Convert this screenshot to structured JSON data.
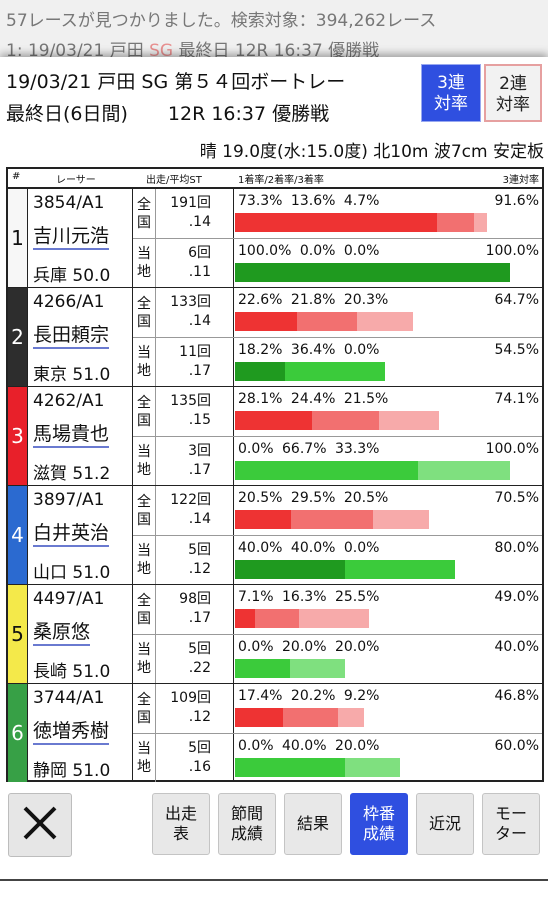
{
  "background": {
    "line1": "57レースが見つかりました。検索対象：394,262レース",
    "line2_prefix": "1: 19/03/21 戸田",
    "line2_sg": "SG",
    "line2_suffix": "最終日 12R 16:37 優勝戦"
  },
  "header": {
    "line1": "19/03/21 戸田 SG 第５４回ボートレー",
    "days": "最終日(6日間)",
    "race": "12R 16:37 優勝戦",
    "weather": "晴 19.0度(水:15.0度) 北10m 波7cm 安定板",
    "toggle_3": "3連\n対率",
    "toggle_2": "2連\n対率"
  },
  "table_header": {
    "num": "#",
    "racer": "レーサー",
    "runs": "出走/平均ST",
    "rates": "1着率/2着率/3着率",
    "total": "3連対率"
  },
  "rows_labels": {
    "national": [
      "全",
      "国"
    ],
    "local": [
      "当",
      "地"
    ]
  },
  "colors": {
    "waku": [
      "#f7f7f7",
      "#2d2d2d",
      "#e8202a",
      "#2b6ad0",
      "#f4e94a",
      "#37a046"
    ],
    "waku_text": [
      "#111111",
      "#ffffff",
      "#ffffff",
      "#ffffff",
      "#111111",
      "#ffffff"
    ],
    "national_bar": [
      "#ee3333",
      "#f27070",
      "#f7aaaa"
    ],
    "local_bar": [
      "#1f9a1f",
      "#3bcb3b",
      "#7fe07f"
    ]
  },
  "racers": [
    {
      "waku": "1",
      "reg": "3854/A1",
      "name": "吉川元浩",
      "branch": "兵庫 50.0",
      "national": {
        "runs": "191回",
        "st": ".14",
        "r1": 73.3,
        "r2": 13.6,
        "r3": 4.7,
        "p1": "73.3%",
        "p2": "13.6%",
        "p3": "4.7%",
        "total": "91.6%"
      },
      "local": {
        "runs": "6回",
        "st": ".11",
        "r1": 100.0,
        "r2": 0.0,
        "r3": 0.0,
        "p1": "100.0%",
        "p2": "0.0%",
        "p3": "0.0%",
        "total": "100.0%"
      }
    },
    {
      "waku": "2",
      "reg": "4266/A1",
      "name": "長田頼宗",
      "branch": "東京 51.0",
      "national": {
        "runs": "133回",
        "st": ".14",
        "r1": 22.6,
        "r2": 21.8,
        "r3": 20.3,
        "p1": "22.6%",
        "p2": "21.8%",
        "p3": "20.3%",
        "total": "64.7%"
      },
      "local": {
        "runs": "11回",
        "st": ".17",
        "r1": 18.2,
        "r2": 36.4,
        "r3": 0.0,
        "p1": "18.2%",
        "p2": "36.4%",
        "p3": "0.0%",
        "total": "54.5%"
      }
    },
    {
      "waku": "3",
      "reg": "4262/A1",
      "name": "馬場貴也",
      "branch": "滋賀 51.2",
      "national": {
        "runs": "135回",
        "st": ".15",
        "r1": 28.1,
        "r2": 24.4,
        "r3": 21.5,
        "p1": "28.1%",
        "p2": "24.4%",
        "p3": "21.5%",
        "total": "74.1%"
      },
      "local": {
        "runs": "3回",
        "st": ".17",
        "r1": 0.0,
        "r2": 66.7,
        "r3": 33.3,
        "p1": "0.0%",
        "p2": "66.7%",
        "p3": "33.3%",
        "total": "100.0%"
      }
    },
    {
      "waku": "4",
      "reg": "3897/A1",
      "name": "白井英治",
      "branch": "山口 51.0",
      "national": {
        "runs": "122回",
        "st": ".14",
        "r1": 20.5,
        "r2": 29.5,
        "r3": 20.5,
        "p1": "20.5%",
        "p2": "29.5%",
        "p3": "20.5%",
        "total": "70.5%"
      },
      "local": {
        "runs": "5回",
        "st": ".12",
        "r1": 40.0,
        "r2": 40.0,
        "r3": 0.0,
        "p1": "40.0%",
        "p2": "40.0%",
        "p3": "0.0%",
        "total": "80.0%"
      }
    },
    {
      "waku": "5",
      "reg": "4497/A1",
      "name": "桑原悠",
      "branch": "長崎 51.0",
      "national": {
        "runs": "98回",
        "st": ".17",
        "r1": 7.1,
        "r2": 16.3,
        "r3": 25.5,
        "p1": "7.1%",
        "p2": "16.3%",
        "p3": "25.5%",
        "total": "49.0%"
      },
      "local": {
        "runs": "5回",
        "st": ".22",
        "r1": 0.0,
        "r2": 20.0,
        "r3": 20.0,
        "p1": "0.0%",
        "p2": "20.0%",
        "p3": "20.0%",
        "total": "40.0%"
      }
    },
    {
      "waku": "6",
      "reg": "3744/A1",
      "name": "徳増秀樹",
      "branch": "静岡 51.0",
      "national": {
        "runs": "109回",
        "st": ".12",
        "r1": 17.4,
        "r2": 20.2,
        "r3": 9.2,
        "p1": "17.4%",
        "p2": "20.2%",
        "p3": "9.2%",
        "total": "46.8%"
      },
      "local": {
        "runs": "5回",
        "st": ".16",
        "r1": 0.0,
        "r2": 40.0,
        "r3": 20.0,
        "p1": "0.0%",
        "p2": "40.0%",
        "p3": "20.0%",
        "total": "60.0%"
      }
    }
  ],
  "footer": {
    "close_icon": "close-x-icon",
    "buttons": [
      "出走\n表",
      "節間\n成績",
      "結果",
      "枠番\n成績",
      "近況",
      "モー\nター"
    ],
    "active_index": 3
  }
}
